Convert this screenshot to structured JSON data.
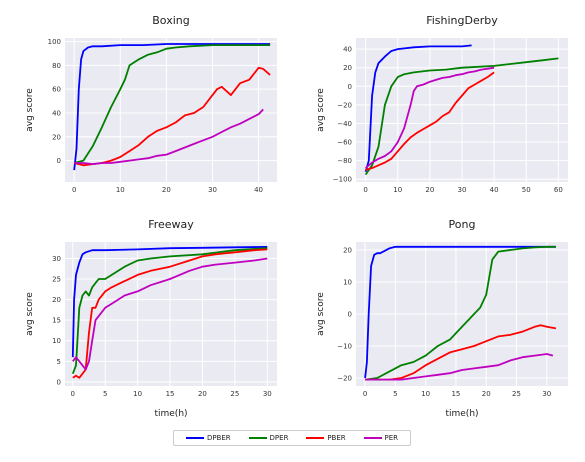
{
  "legend": [
    {
      "name": "DPBER",
      "color": "#0000ff"
    },
    {
      "name": "DPER",
      "color": "#008000"
    },
    {
      "name": "PBER",
      "color": "#ff0000"
    },
    {
      "name": "PER",
      "color": "#bf00bf"
    }
  ],
  "chart_data": [
    {
      "type": "line",
      "title": "Boxing",
      "xlabel": "",
      "ylabel": "avg score",
      "xlim": [
        -2,
        44
      ],
      "ylim": [
        -18,
        103
      ],
      "xticks": [
        0,
        10,
        20,
        30,
        40
      ],
      "yticks": [
        0,
        20,
        40,
        60,
        80,
        100
      ],
      "grid": true,
      "series": [
        {
          "name": "DPBER",
          "x": [
            0,
            0.5,
            1,
            1.5,
            2,
            3,
            4,
            6,
            10,
            15,
            20,
            25,
            30,
            35,
            40,
            42.5
          ],
          "y": [
            -8,
            10,
            60,
            85,
            92,
            95,
            96,
            96,
            97,
            97,
            98,
            98,
            98,
            98,
            98,
            98
          ]
        },
        {
          "name": "DPER",
          "x": [
            0,
            2,
            4,
            6,
            8,
            10,
            11,
            12,
            14,
            16,
            18,
            20,
            22,
            25,
            30,
            35,
            40,
            42.5
          ],
          "y": [
            -2,
            0,
            12,
            28,
            45,
            60,
            68,
            80,
            85,
            89,
            91,
            94,
            95,
            96,
            97,
            97,
            97,
            97
          ]
        },
        {
          "name": "PBER",
          "x": [
            0,
            2,
            4,
            6,
            8,
            10,
            12,
            14,
            16,
            18,
            20,
            22,
            24,
            26,
            28,
            30,
            31,
            32,
            34,
            36,
            38,
            40,
            41,
            42.5
          ],
          "y": [
            -2,
            -4,
            -3,
            -2,
            0,
            3,
            8,
            13,
            20,
            25,
            28,
            32,
            38,
            40,
            45,
            55,
            60,
            62,
            55,
            65,
            68,
            78,
            77,
            72
          ]
        },
        {
          "name": "PER",
          "x": [
            0,
            2,
            4,
            6,
            8,
            10,
            12,
            14,
            16,
            18,
            20,
            22,
            24,
            26,
            28,
            30,
            32,
            34,
            36,
            38,
            40,
            41
          ],
          "y": [
            -2,
            -2,
            -3,
            -2,
            -2,
            -1,
            0,
            1,
            2,
            4,
            5,
            8,
            11,
            14,
            17,
            20,
            24,
            28,
            31,
            35,
            39,
            43
          ]
        }
      ]
    },
    {
      "type": "line",
      "title": "FishingDerby",
      "xlabel": "",
      "ylabel": "avg score",
      "xlim": [
        -3,
        63
      ],
      "ylim": [
        -103,
        52
      ],
      "xticks": [
        0,
        10,
        20,
        30,
        40,
        50,
        60
      ],
      "yticks": [
        -100,
        -80,
        -60,
        -40,
        -20,
        0,
        20,
        40
      ],
      "grid": true,
      "series": [
        {
          "name": "DPBER",
          "x": [
            0,
            1,
            2,
            3,
            4,
            6,
            8,
            10,
            15,
            20,
            25,
            30,
            33
          ],
          "y": [
            -92,
            -80,
            -10,
            15,
            25,
            32,
            38,
            40,
            42,
            43,
            43,
            43,
            44
          ]
        },
        {
          "name": "DPER",
          "x": [
            0,
            2,
            4,
            6,
            8,
            10,
            12,
            15,
            20,
            25,
            30,
            35,
            40,
            45,
            50,
            55,
            60
          ],
          "y": [
            -95,
            -85,
            -65,
            -20,
            0,
            10,
            13,
            15,
            17,
            18,
            20,
            21,
            22,
            24,
            26,
            28,
            30
          ]
        },
        {
          "name": "PBER",
          "x": [
            0,
            2,
            4,
            6,
            8,
            10,
            12,
            14,
            16,
            18,
            20,
            22,
            24,
            26,
            28,
            30,
            32,
            34,
            36,
            38,
            40
          ],
          "y": [
            -90,
            -88,
            -85,
            -82,
            -78,
            -70,
            -62,
            -55,
            -50,
            -46,
            -42,
            -38,
            -32,
            -28,
            -18,
            -10,
            -2,
            2,
            6,
            10,
            15
          ]
        },
        {
          "name": "PER",
          "x": [
            0,
            2,
            4,
            6,
            8,
            10,
            12,
            14,
            15,
            16,
            18,
            20,
            22,
            24,
            26,
            28,
            30,
            32,
            34,
            36,
            38,
            40
          ],
          "y": [
            -88,
            -82,
            -78,
            -75,
            -70,
            -60,
            -45,
            -20,
            -5,
            0,
            2,
            5,
            7,
            9,
            10,
            12,
            13,
            15,
            16,
            18,
            19,
            20
          ]
        }
      ]
    },
    {
      "type": "line",
      "title": "Freeway",
      "xlabel": "time(h)",
      "ylabel": "avg score",
      "xlim": [
        -1.2,
        31.5
      ],
      "ylim": [
        -1,
        34
      ],
      "xticks": [
        0,
        5,
        10,
        15,
        20,
        25,
        30
      ],
      "yticks": [
        0,
        5,
        10,
        15,
        20,
        25,
        30
      ],
      "grid": true,
      "series": [
        {
          "name": "DPBER",
          "x": [
            0,
            0.2,
            0.5,
            1,
            1.5,
            2,
            3,
            5,
            10,
            15,
            20,
            25,
            30
          ],
          "y": [
            6,
            20,
            26,
            29,
            31,
            31.5,
            32,
            32,
            32.2,
            32.5,
            32.6,
            32.7,
            32.8
          ]
        },
        {
          "name": "DPER",
          "x": [
            0,
            0.5,
            1,
            1.5,
            2,
            2.5,
            3,
            3.5,
            4,
            5,
            6,
            8,
            10,
            12,
            15,
            20,
            25,
            30
          ],
          "y": [
            2,
            4,
            18,
            21,
            22,
            21,
            23,
            24,
            25,
            25,
            26,
            28,
            29.5,
            30,
            30.5,
            31,
            32,
            32.5
          ]
        },
        {
          "name": "PBER",
          "x": [
            0,
            0.5,
            1,
            1.5,
            2,
            2.5,
            3,
            3.5,
            4,
            5,
            6,
            8,
            10,
            12,
            15,
            18,
            20,
            22,
            25,
            28,
            30
          ],
          "y": [
            1,
            1.5,
            1,
            2,
            3,
            12,
            18,
            18,
            20,
            22,
            23,
            24.5,
            26,
            27,
            28,
            29.5,
            30.5,
            31,
            31.5,
            32,
            32.2
          ]
        },
        {
          "name": "PER",
          "x": [
            0,
            0.5,
            1,
            1.5,
            2,
            2.5,
            3,
            3.5,
            4,
            5,
            6,
            8,
            10,
            12,
            15,
            18,
            20,
            22,
            25,
            28,
            30
          ],
          "y": [
            5,
            6,
            5,
            4,
            3,
            5,
            10,
            15,
            16,
            18,
            19,
            21,
            22,
            23.5,
            25,
            27,
            28,
            28.5,
            29,
            29.5,
            30
          ]
        }
      ]
    },
    {
      "type": "line",
      "title": "Pong",
      "xlabel": "time(h)",
      "ylabel": "avg score",
      "xlim": [
        -1.5,
        33.5
      ],
      "ylim": [
        -22.5,
        22.5
      ],
      "xticks": [
        0,
        5,
        10,
        15,
        20,
        25,
        30
      ],
      "yticks": [
        -20,
        -10,
        0,
        10,
        20
      ],
      "grid": true,
      "series": [
        {
          "name": "DPBER",
          "x": [
            0,
            0.3,
            0.6,
            1,
            1.5,
            2,
            2.5,
            3,
            4,
            5,
            10,
            15,
            20,
            25,
            30,
            31.5
          ],
          "y": [
            -20,
            -15,
            0,
            15,
            18.5,
            19,
            19,
            19.5,
            20.5,
            21,
            21,
            21,
            21,
            21,
            21,
            21
          ]
        },
        {
          "name": "DPER",
          "x": [
            0,
            2,
            4,
            6,
            8,
            10,
            12,
            14,
            16,
            17,
            18,
            19,
            20,
            21,
            22,
            24,
            26,
            28,
            30,
            31.5
          ],
          "y": [
            -20.5,
            -20,
            -18,
            -16,
            -15,
            -13,
            -10,
            -8,
            -4,
            -2,
            0,
            2,
            6,
            17,
            19.5,
            20,
            20.5,
            20.8,
            21,
            21
          ]
        },
        {
          "name": "PBER",
          "x": [
            0,
            2,
            4,
            6,
            8,
            10,
            12,
            14,
            16,
            18,
            20,
            22,
            24,
            26,
            28,
            29,
            30,
            31.5
          ],
          "y": [
            -20.5,
            -20.5,
            -20.5,
            -20,
            -18.5,
            -16,
            -14,
            -12,
            -11,
            -10,
            -8.5,
            -7,
            -6.5,
            -5.5,
            -4,
            -3.5,
            -4,
            -4.5
          ]
        },
        {
          "name": "PER",
          "x": [
            0,
            2,
            4,
            6,
            8,
            10,
            12,
            14,
            16,
            18,
            20,
            22,
            24,
            26,
            28,
            30,
            31
          ],
          "y": [
            -20.5,
            -20.5,
            -20.5,
            -20.5,
            -20,
            -19.5,
            -19,
            -18.5,
            -17.5,
            -17,
            -16.5,
            -16,
            -14.5,
            -13.5,
            -13,
            -12.5,
            -13
          ]
        }
      ]
    }
  ]
}
